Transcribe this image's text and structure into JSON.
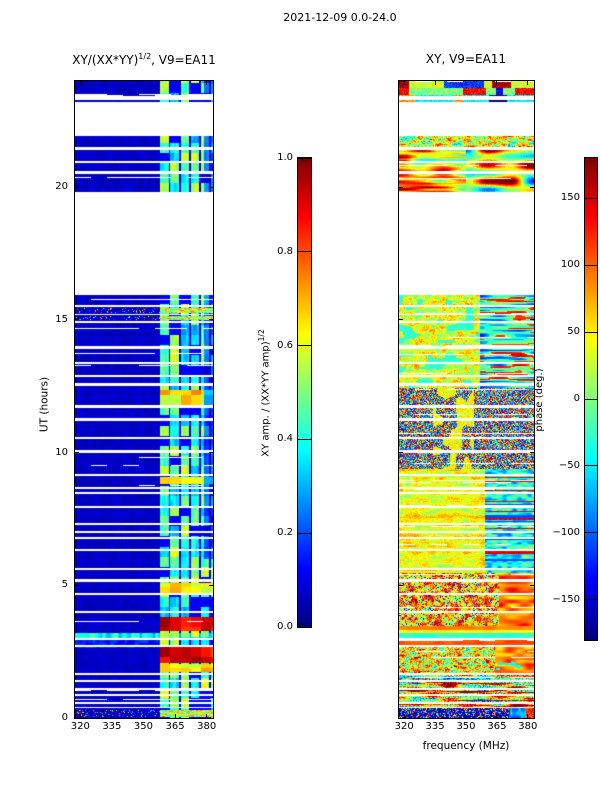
{
  "figure": {
    "suptitle": "2021-12-09 0.0-24.0"
  },
  "chart_data": [
    {
      "type": "heatmap",
      "panel": "left",
      "title": "XY/(XX*YY)^(1/2), V9=EA11",
      "title_parts": {
        "base": "XY/(XX*YY)",
        "sup": "1/2",
        "rest": ", V9=EA11"
      },
      "x": {
        "label": "frequency (MHz)",
        "range": [
          317.5,
          383.0
        ],
        "ticks": [
          320,
          335,
          350,
          365,
          380
        ]
      },
      "y": {
        "label": "UT (hours)",
        "range": [
          0,
          24
        ],
        "ticks": [
          0,
          5,
          10,
          15,
          20
        ]
      },
      "value": {
        "name": "normalized cross amplitude",
        "range": [
          0,
          1
        ]
      },
      "colormap": "jet",
      "colorbar": {
        "label_parts": {
          "base": "XY amp. / (XX*YY amp)",
          "sup": "1/2"
        },
        "ticks": [
          {
            "label": "1.0",
            "value": 1.0
          },
          {
            "label": "0.8",
            "value": 0.8
          },
          {
            "label": "0.6",
            "value": 0.6
          },
          {
            "label": "0.4",
            "value": 0.4
          },
          {
            "label": "0.2",
            "value": 0.2
          },
          {
            "label": "0.0",
            "value": 0.0
          }
        ]
      },
      "features": {
        "background_value": 0.05,
        "bright_band_mhz": [
          358.0,
          383.0
        ],
        "band_block_width_mhz": 4.8,
        "band_block_height_ut": 0.38,
        "band_dim_above_mhz": 378.5,
        "hot_red_rows_ut": [
          [
            2.07,
            2.67
          ],
          [
            3.28,
            3.82
          ]
        ],
        "warm_rows_ut": [
          [
            1.72,
            2.05
          ],
          [
            4.72,
            5.1
          ],
          [
            8.8,
            9.08
          ],
          [
            11.8,
            12.35
          ]
        ],
        "cyan_line_ut": [
          3.02,
          3.2
        ],
        "soft_blue_ut": [
          2.62,
          3.0
        ],
        "speckle_rows_ut": [
          [
            0.05,
            0.3
          ],
          [
            14.98,
            15.16
          ],
          [
            15.26,
            15.44
          ]
        ]
      }
    },
    {
      "type": "heatmap",
      "panel": "right",
      "title": "XY, V9=EA11",
      "x": {
        "label": "frequency (MHz)",
        "range": [
          317.5,
          383.0
        ],
        "ticks": [
          320,
          335,
          350,
          365,
          380
        ]
      },
      "y": {
        "label": "UT (hours)",
        "range": [
          0,
          24
        ],
        "ticks": [
          0,
          5,
          10,
          15,
          20
        ]
      },
      "value": {
        "name": "phase",
        "range": [
          -180,
          180
        ]
      },
      "colormap": "jet",
      "colorbar": {
        "label": "phase (deg.)",
        "ticks": [
          {
            "label": "150",
            "value": 150
          },
          {
            "label": "100",
            "value": 100
          },
          {
            "label": "50",
            "value": 50
          },
          {
            "label": "0",
            "value": 0
          },
          {
            "label": "−50",
            "value": -50
          },
          {
            "label": "−100",
            "value": -100
          },
          {
            "label": "−150",
            "value": -150
          }
        ]
      },
      "regions": [
        {
          "ut": [
            0.0,
            0.38
          ],
          "style": "dark_speckle"
        },
        {
          "ut": [
            0.38,
            1.62
          ],
          "style": "mixed_streaks"
        },
        {
          "ut": [
            1.62,
            2.75
          ],
          "style": "warm_noise"
        },
        {
          "ut": [
            2.75,
            3.45
          ],
          "style": "smooth_bands",
          "bands": [
            [
              2.75,
              3.0,
              0.8
            ],
            [
              3.0,
              3.2,
              0.42
            ],
            [
              3.2,
              3.32,
              0.63
            ],
            [
              3.32,
              3.45,
              0.74
            ]
          ]
        },
        {
          "ut": [
            3.45,
            5.45
          ],
          "style": "warm_noise2"
        },
        {
          "ut": [
            5.45,
            9.4
          ],
          "style": "yellow_blob"
        },
        {
          "ut": [
            9.4,
            12.45
          ],
          "style": "scrambled"
        },
        {
          "ut": [
            12.45,
            15.92
          ],
          "style": "warm_streaky"
        },
        {
          "ut": [
            19.83,
            21.92
          ],
          "style": "smooth_blobs"
        },
        {
          "ut": [
            23.2,
            24.0
          ],
          "style": "top_streaks"
        }
      ]
    }
  ],
  "shared": {
    "data_gaps_ut": [
      [
        0.36,
        0.42
      ],
      [
        0.52,
        0.6
      ],
      [
        0.84,
        0.91
      ],
      [
        1.06,
        1.14
      ],
      [
        1.36,
        1.43
      ],
      [
        1.62,
        1.7
      ],
      [
        2.67,
        2.75
      ],
      [
        2.95,
        3.02
      ],
      [
        3.95,
        4.05
      ],
      [
        4.62,
        4.7
      ],
      [
        5.14,
        5.25
      ],
      [
        5.57,
        5.65
      ],
      [
        6.3,
        6.38
      ],
      [
        6.73,
        6.81
      ],
      [
        6.97,
        7.05
      ],
      [
        7.27,
        7.36
      ],
      [
        7.9,
        7.98
      ],
      [
        8.44,
        8.52
      ],
      [
        8.62,
        8.7
      ],
      [
        9.1,
        9.18
      ],
      [
        10.0,
        10.08
      ],
      [
        10.5,
        10.6
      ],
      [
        11.2,
        11.3
      ],
      [
        11.68,
        11.78
      ],
      [
        12.5,
        12.62
      ],
      [
        12.86,
        12.94
      ],
      [
        13.33,
        13.41
      ],
      [
        13.9,
        14.0
      ],
      [
        14.88,
        14.96
      ],
      [
        15.18,
        15.24
      ],
      [
        15.48,
        15.56
      ],
      [
        15.92,
        19.83
      ],
      [
        20.5,
        20.6
      ],
      [
        20.9,
        21.0
      ],
      [
        21.4,
        21.52
      ],
      [
        21.92,
        23.2
      ],
      [
        23.3,
        23.42
      ]
    ]
  }
}
